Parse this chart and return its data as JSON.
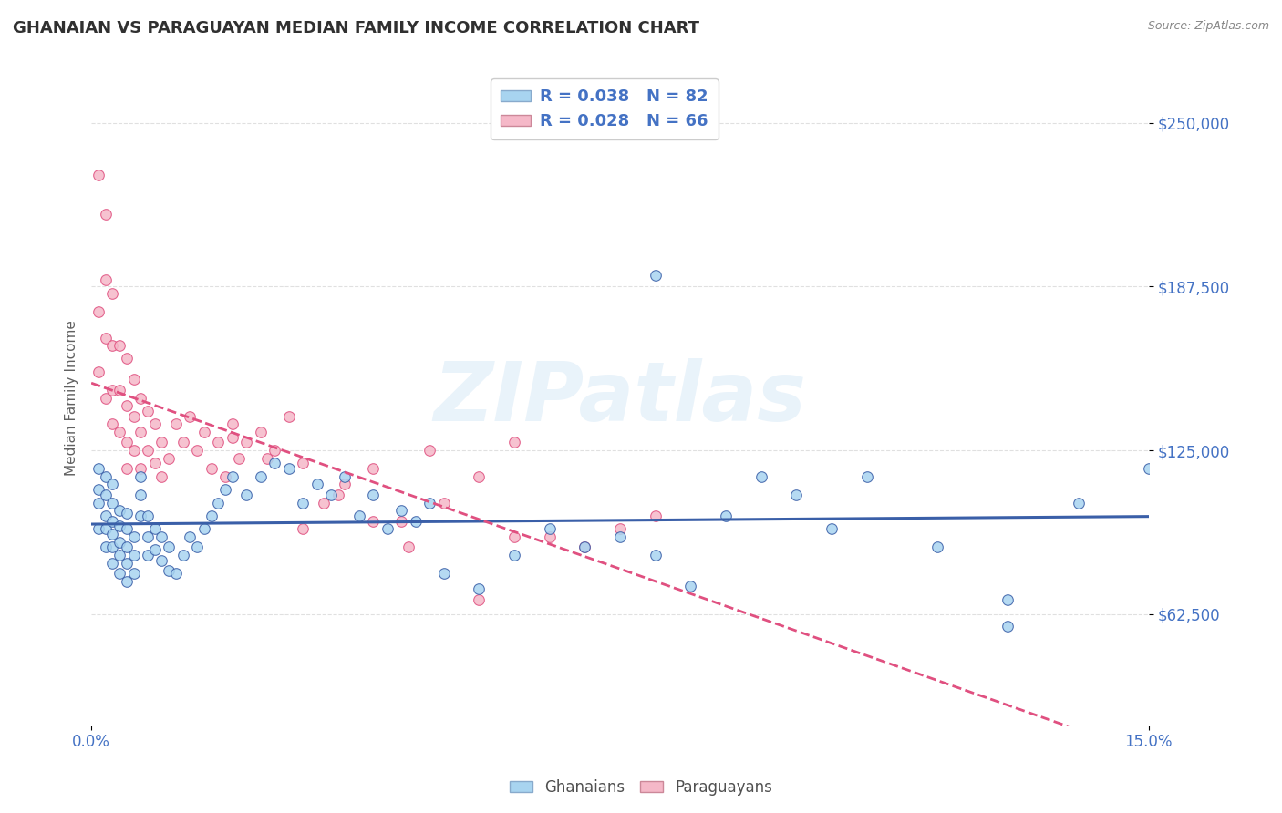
{
  "title": "GHANAIAN VS PARAGUAYAN MEDIAN FAMILY INCOME CORRELATION CHART",
  "source_text": "Source: ZipAtlas.com",
  "ylabel": "Median Family Income",
  "xlim": [
    0.0,
    0.15
  ],
  "ylim": [
    20000,
    270000
  ],
  "yticks": [
    62500,
    125000,
    187500,
    250000
  ],
  "ytick_labels": [
    "$62,500",
    "$125,000",
    "$187,500",
    "$250,000"
  ],
  "xticks": [
    0.0,
    0.15
  ],
  "xtick_labels": [
    "0.0%",
    "15.0%"
  ],
  "legend_r": [
    "R = 0.038",
    "R = 0.028"
  ],
  "legend_n": [
    "N = 82",
    "N = 66"
  ],
  "ghanaian_color": "#A8D4F0",
  "paraguayan_color": "#F5B8C8",
  "ghanaian_line_color": "#3A5FA8",
  "paraguayan_line_color": "#E05080",
  "watermark_text": "ZIPatlas",
  "background_color": "#FFFFFF",
  "grid_color": "#DDDDDD",
  "title_color": "#303030",
  "axis_label_color": "#606060",
  "tick_label_color": "#4472C4",
  "legend_text_color": "#4472C4",
  "ghanaians_x": [
    0.001,
    0.001,
    0.001,
    0.001,
    0.002,
    0.002,
    0.002,
    0.002,
    0.002,
    0.003,
    0.003,
    0.003,
    0.003,
    0.003,
    0.003,
    0.004,
    0.004,
    0.004,
    0.004,
    0.004,
    0.005,
    0.005,
    0.005,
    0.005,
    0.005,
    0.006,
    0.006,
    0.006,
    0.007,
    0.007,
    0.007,
    0.008,
    0.008,
    0.008,
    0.009,
    0.009,
    0.01,
    0.01,
    0.011,
    0.011,
    0.012,
    0.013,
    0.014,
    0.015,
    0.016,
    0.017,
    0.018,
    0.019,
    0.02,
    0.022,
    0.024,
    0.026,
    0.028,
    0.03,
    0.032,
    0.034,
    0.036,
    0.038,
    0.04,
    0.042,
    0.044,
    0.046,
    0.048,
    0.05,
    0.055,
    0.06,
    0.065,
    0.07,
    0.075,
    0.08,
    0.085,
    0.09,
    0.095,
    0.1,
    0.105,
    0.11,
    0.12,
    0.13,
    0.14,
    0.15,
    0.13,
    0.08
  ],
  "ghanaians_y": [
    95000,
    105000,
    110000,
    118000,
    88000,
    95000,
    100000,
    108000,
    115000,
    82000,
    88000,
    93000,
    98000,
    105000,
    112000,
    78000,
    85000,
    90000,
    96000,
    102000,
    75000,
    82000,
    88000,
    95000,
    101000,
    78000,
    85000,
    92000,
    100000,
    108000,
    115000,
    85000,
    92000,
    100000,
    87000,
    95000,
    83000,
    92000,
    79000,
    88000,
    78000,
    85000,
    92000,
    88000,
    95000,
    100000,
    105000,
    110000,
    115000,
    108000,
    115000,
    120000,
    118000,
    105000,
    112000,
    108000,
    115000,
    100000,
    108000,
    95000,
    102000,
    98000,
    105000,
    78000,
    72000,
    85000,
    95000,
    88000,
    92000,
    85000,
    73000,
    100000,
    115000,
    108000,
    95000,
    115000,
    88000,
    68000,
    105000,
    118000,
    58000,
    192000
  ],
  "paraguayans_x": [
    0.001,
    0.001,
    0.001,
    0.002,
    0.002,
    0.002,
    0.002,
    0.003,
    0.003,
    0.003,
    0.003,
    0.004,
    0.004,
    0.004,
    0.005,
    0.005,
    0.005,
    0.005,
    0.006,
    0.006,
    0.006,
    0.007,
    0.007,
    0.007,
    0.008,
    0.008,
    0.009,
    0.009,
    0.01,
    0.01,
    0.011,
    0.012,
    0.013,
    0.014,
    0.015,
    0.016,
    0.017,
    0.018,
    0.019,
    0.02,
    0.021,
    0.022,
    0.024,
    0.026,
    0.028,
    0.03,
    0.033,
    0.036,
    0.04,
    0.044,
    0.048,
    0.055,
    0.06,
    0.065,
    0.07,
    0.075,
    0.08,
    0.02,
    0.025,
    0.035,
    0.045,
    0.055,
    0.03,
    0.04,
    0.05,
    0.06
  ],
  "paraguayans_y": [
    230000,
    178000,
    155000,
    215000,
    190000,
    168000,
    145000,
    185000,
    165000,
    148000,
    135000,
    165000,
    148000,
    132000,
    160000,
    142000,
    128000,
    118000,
    152000,
    138000,
    125000,
    145000,
    132000,
    118000,
    140000,
    125000,
    135000,
    120000,
    128000,
    115000,
    122000,
    135000,
    128000,
    138000,
    125000,
    132000,
    118000,
    128000,
    115000,
    135000,
    122000,
    128000,
    132000,
    125000,
    138000,
    120000,
    105000,
    112000,
    118000,
    98000,
    125000,
    115000,
    128000,
    92000,
    88000,
    95000,
    100000,
    130000,
    122000,
    108000,
    88000,
    68000,
    95000,
    98000,
    105000,
    92000
  ]
}
